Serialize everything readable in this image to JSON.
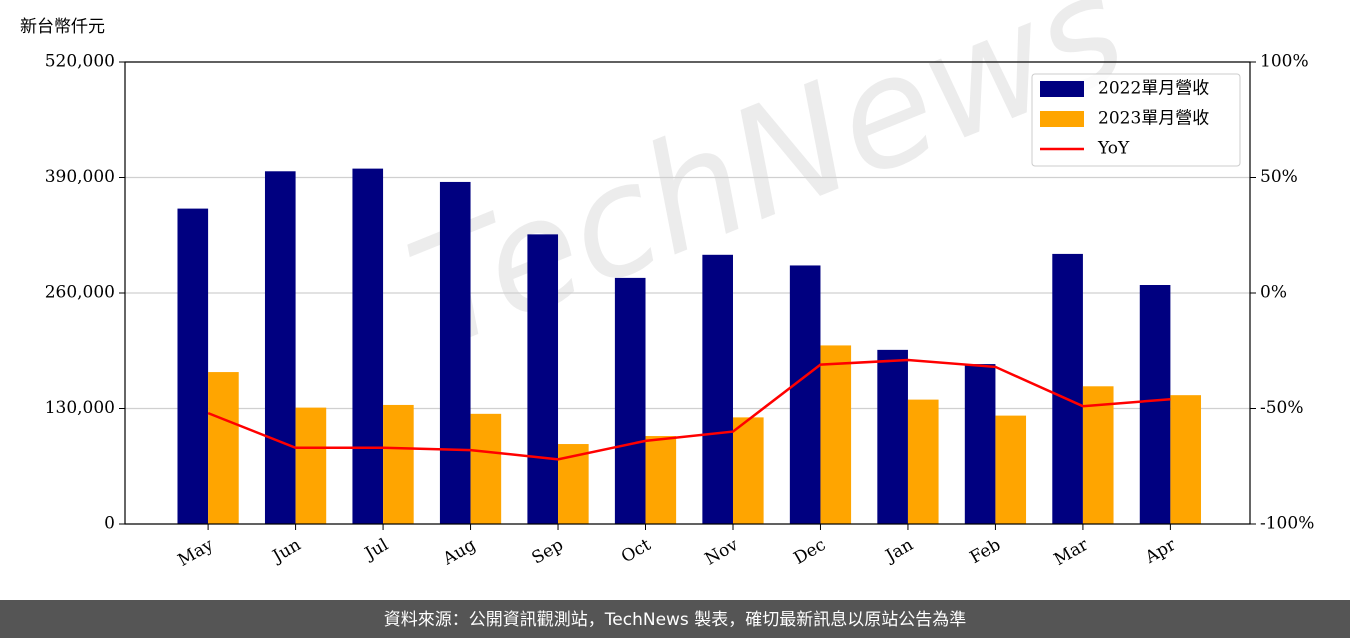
{
  "chart_data": {
    "type": "bar_line",
    "y_unit_label": "新台幣仟元",
    "watermark": "TechNews",
    "footer": "資料來源：公開資訊觀測站，TechNews 製表，確切最新訊息以原站公告為準",
    "categories": [
      "May",
      "Jun",
      "Jul",
      "Aug",
      "Sep",
      "Oct",
      "Nov",
      "Dec",
      "Jan",
      "Feb",
      "Mar",
      "Apr"
    ],
    "series": [
      {
        "name": "2022單月營收",
        "color": "#000080",
        "kind": "bar",
        "values": [
          355000,
          397000,
          400000,
          385000,
          326000,
          277000,
          303000,
          291000,
          196000,
          180000,
          304000,
          269000
        ]
      },
      {
        "name": "2023單月營收",
        "color": "#ffa500",
        "kind": "bar",
        "values": [
          171000,
          131000,
          134000,
          124000,
          90000,
          99000,
          120000,
          201000,
          140000,
          122000,
          155000,
          145000
        ]
      },
      {
        "name": "YoY",
        "color": "#ff0000",
        "kind": "line",
        "axis": "y2",
        "values": [
          -52,
          -67,
          -67,
          -68,
          -72,
          -64,
          -60,
          -31,
          -29,
          -32,
          -49,
          -46
        ]
      }
    ],
    "ylim": [
      0,
      520000
    ],
    "yticks": [
      0,
      {
        "value": 130000,
        "label": "130,000"
      },
      {
        "value": 260000,
        "label": "260,000"
      },
      {
        "value": 390000,
        "label": "390,000"
      },
      {
        "value": 520000,
        "label": "520,000"
      }
    ],
    "y2lim": [
      -100,
      100
    ],
    "y2ticks": [
      {
        "value": -100,
        "label": "-100%"
      },
      {
        "value": -50,
        "label": "-50%"
      },
      {
        "value": 0,
        "label": "0%"
      },
      {
        "value": 50,
        "label": "50%"
      },
      {
        "value": 100,
        "label": "100%"
      }
    ],
    "grid": true,
    "legend": "upper-right"
  }
}
